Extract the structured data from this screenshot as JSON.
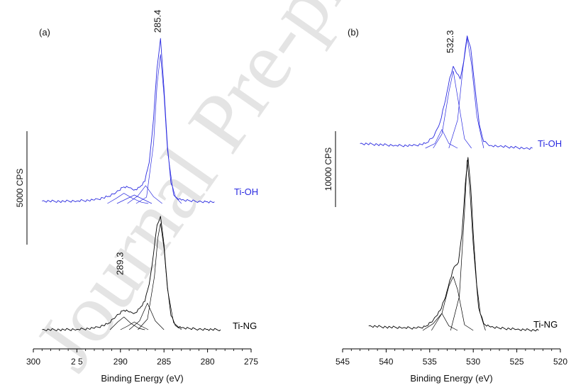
{
  "watermark": "Journal Pre-proof",
  "colors": {
    "ti_oh": "#2a2ae0",
    "ti_ng": "#000000",
    "axis": "#000000"
  },
  "chart_data": [
    {
      "type": "line",
      "panel_label": "(a)",
      "xlabel": "Binding Energy (eV)",
      "ylabel": "",
      "xlim": [
        300,
        275
      ],
      "x_ticks": [
        300,
        295,
        290,
        285,
        280,
        275
      ],
      "x_tick_labels": [
        "300",
        "2 5",
        "290",
        "285",
        "280",
        "275"
      ],
      "scale_bar_label": "5000 CPS",
      "annotations": [
        "285.4",
        "289.3"
      ],
      "series": [
        {
          "name": "Ti-OH",
          "color": "#2a2ae0",
          "x": [
            299.0,
            297.0,
            295.0,
            293.0,
            291.5,
            290.5,
            289.6,
            289.0,
            288.3,
            287.8,
            287.2,
            286.7,
            286.2,
            285.8,
            285.4,
            285.0,
            284.6,
            284.2,
            283.7,
            283.0,
            282.0,
            281.0,
            280.0,
            279.2
          ],
          "y": [
            6,
            5,
            6,
            8,
            16,
            26,
            39,
            37,
            33,
            38,
            52,
            96,
            200,
            318,
            388,
            270,
            135,
            48,
            16,
            8,
            6,
            5,
            4,
            4
          ],
          "components": [
            {
              "x": [
                291.5,
                290.5,
                289.6,
                288.6,
                287.6,
                286.8
              ],
              "y": [
                0,
                12,
                24,
                12,
                3,
                0
              ]
            },
            {
              "x": [
                290.4,
                289.4,
                288.4,
                287.4,
                286.4
              ],
              "y": [
                0,
                10,
                20,
                10,
                0
              ]
            },
            {
              "x": [
                289.2,
                288.0,
                287.1,
                286.2,
                285.2
              ],
              "y": [
                0,
                18,
                42,
                16,
                0
              ]
            },
            {
              "x": [
                288.2,
                287.0,
                286.2,
                285.8,
                285.4,
                285.0,
                284.6,
                283.9,
                283.0
              ],
              "y": [
                0,
                15,
                140,
                280,
                350,
                255,
                125,
                20,
                0
              ]
            }
          ]
        },
        {
          "name": "Ti-NG",
          "color": "#000000",
          "x": [
            299.0,
            297.0,
            295.0,
            293.0,
            291.5,
            290.5,
            289.6,
            289.0,
            288.3,
            287.8,
            287.2,
            286.7,
            286.2,
            285.8,
            285.4,
            285.0,
            284.6,
            284.2,
            283.7,
            283.0,
            282.0,
            281.0,
            280.0,
            278.5
          ],
          "y": [
            0,
            0,
            1,
            4,
            16,
            38,
            55,
            50,
            48,
            60,
            80,
            128,
            215,
            295,
            320,
            240,
            120,
            40,
            12,
            5,
            3,
            2,
            1,
            0
          ],
          "components": [
            {
              "x": [
                291.2,
                290.3,
                289.6,
                288.8,
                287.9,
                287.2
              ],
              "y": [
                0,
                22,
                36,
                18,
                4,
                0
              ]
            },
            {
              "x": [
                290.0,
                289.2,
                288.4,
                287.6,
                286.8
              ],
              "y": [
                0,
                10,
                22,
                10,
                0
              ]
            },
            {
              "x": [
                289.0,
                287.8,
                286.9,
                286.0,
                285.0
              ],
              "y": [
                0,
                25,
                75,
                25,
                0
              ]
            },
            {
              "x": [
                288.0,
                286.9,
                286.1,
                285.7,
                285.4,
                285.0,
                284.6,
                283.9,
                283.0
              ],
              "y": [
                0,
                30,
                150,
                260,
                300,
                230,
                115,
                20,
                0
              ]
            }
          ]
        }
      ]
    },
    {
      "type": "line",
      "panel_label": "(b)",
      "xlabel": "Binding Energy (eV)",
      "ylabel": "",
      "xlim": [
        545,
        520
      ],
      "x_ticks": [
        545,
        540,
        535,
        530,
        525,
        520
      ],
      "x_tick_labels": [
        "545",
        "540",
        "535",
        "530",
        "525",
        "520"
      ],
      "scale_bar_label": "10000 CPS",
      "annotations": [
        "532.3"
      ],
      "series": [
        {
          "name": "Ti-OH",
          "color": "#2a2ae0",
          "x": [
            543.0,
            541.0,
            539.0,
            537.0,
            535.5,
            534.5,
            533.8,
            533.2,
            532.7,
            532.3,
            531.9,
            531.5,
            531.1,
            530.7,
            530.3,
            529.8,
            529.3,
            528.8,
            528.0,
            527.0,
            525.5,
            524.0,
            523.2
          ],
          "y": [
            10,
            8,
            6,
            5,
            10,
            26,
            56,
            102,
            150,
            175,
            160,
            148,
            185,
            240,
            215,
            130,
            50,
            14,
            6,
            4,
            2,
            0,
            0
          ],
          "components": [
            {
              "x": [
                535.5,
                534.4,
                533.6,
                532.8,
                531.8
              ],
              "y": [
                0,
                10,
                40,
                10,
                0
              ]
            },
            {
              "x": [
                534.6,
                533.6,
                532.8,
                532.3,
                531.8,
                531.0,
                530.2
              ],
              "y": [
                0,
                30,
                120,
                165,
                110,
                20,
                0
              ]
            },
            {
              "x": [
                532.8,
                531.8,
                531.2,
                530.7,
                530.2,
                529.6,
                528.8
              ],
              "y": [
                0,
                60,
                170,
                235,
                180,
                70,
                0
              ]
            }
          ]
        },
        {
          "name": "Ti-NG",
          "color": "#000000",
          "x": [
            542.0,
            540.0,
            538.0,
            536.5,
            535.5,
            534.6,
            533.8,
            533.2,
            532.7,
            532.2,
            531.7,
            531.3,
            530.9,
            530.6,
            530.3,
            530.0,
            529.6,
            529.2,
            528.8,
            528.0,
            527.0,
            525.0,
            522.5
          ],
          "y": [
            8,
            6,
            5,
            4,
            7,
            18,
            35,
            58,
            88,
            112,
            120,
            170,
            260,
            305,
            255,
            170,
            80,
            30,
            12,
            6,
            4,
            2,
            0
          ],
          "components": [
            {
              "x": [
                535.8,
                534.6,
                533.6,
                532.8,
                531.8
              ],
              "y": [
                0,
                12,
                30,
                8,
                0
              ]
            },
            {
              "x": [
                534.8,
                533.6,
                532.8,
                532.3,
                531.8,
                531.0,
                530.0
              ],
              "y": [
                0,
                30,
                78,
                95,
                72,
                10,
                0
              ]
            },
            {
              "x": [
                532.6,
                531.6,
                531.0,
                530.7,
                530.4,
                530.0,
                529.4,
                528.6
              ],
              "y": [
                0,
                60,
                210,
                300,
                250,
                150,
                40,
                0
              ]
            }
          ]
        }
      ]
    }
  ]
}
